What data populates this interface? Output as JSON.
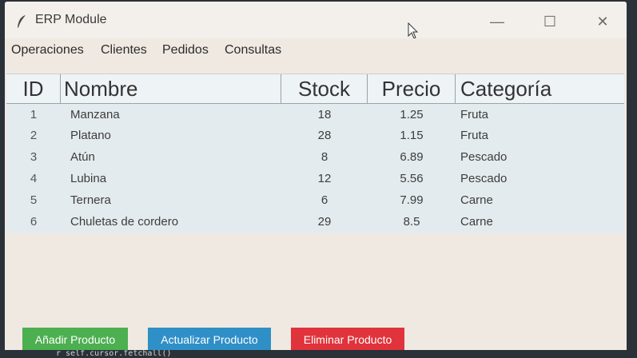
{
  "window": {
    "title": "ERP Module"
  },
  "controls": {
    "minimize": "—",
    "maximize": "☐",
    "close": "✕"
  },
  "menu": {
    "items": [
      "Operaciones",
      "Clientes",
      "Pedidos",
      "Consultas"
    ]
  },
  "table": {
    "columns": [
      "ID",
      "Nombre",
      "Stock",
      "Precio",
      "Categoría"
    ],
    "rows": [
      {
        "id": "1",
        "nombre": "Manzana",
        "stock": "18",
        "precio": "1.25",
        "categoria": "Fruta"
      },
      {
        "id": "2",
        "nombre": "Platano",
        "stock": "28",
        "precio": "1.15",
        "categoria": "Fruta"
      },
      {
        "id": "3",
        "nombre": "Atún",
        "stock": "8",
        "precio": "6.89",
        "categoria": "Pescado"
      },
      {
        "id": "4",
        "nombre": "Lubina",
        "stock": "12",
        "precio": "5.56",
        "categoria": "Pescado"
      },
      {
        "id": "5",
        "nombre": "Ternera",
        "stock": "6",
        "precio": "7.99",
        "categoria": "Carne"
      },
      {
        "id": "6",
        "nombre": "Chuletas de cordero",
        "stock": "29",
        "precio": "8.5",
        "categoria": "Carne"
      }
    ]
  },
  "actions": {
    "add": "Añadir Producto",
    "update": "Actualizar Producto",
    "delete": "Eliminar Producto"
  },
  "background": {
    "code_line": "r self.cursor.fetchall()"
  },
  "colors": {
    "add_button": "#4caf50",
    "update_button": "#2f8fc7",
    "delete_button": "#e0333b"
  },
  "icons": {
    "app": "feather-icon",
    "cursor": "mouse-pointer-icon"
  }
}
